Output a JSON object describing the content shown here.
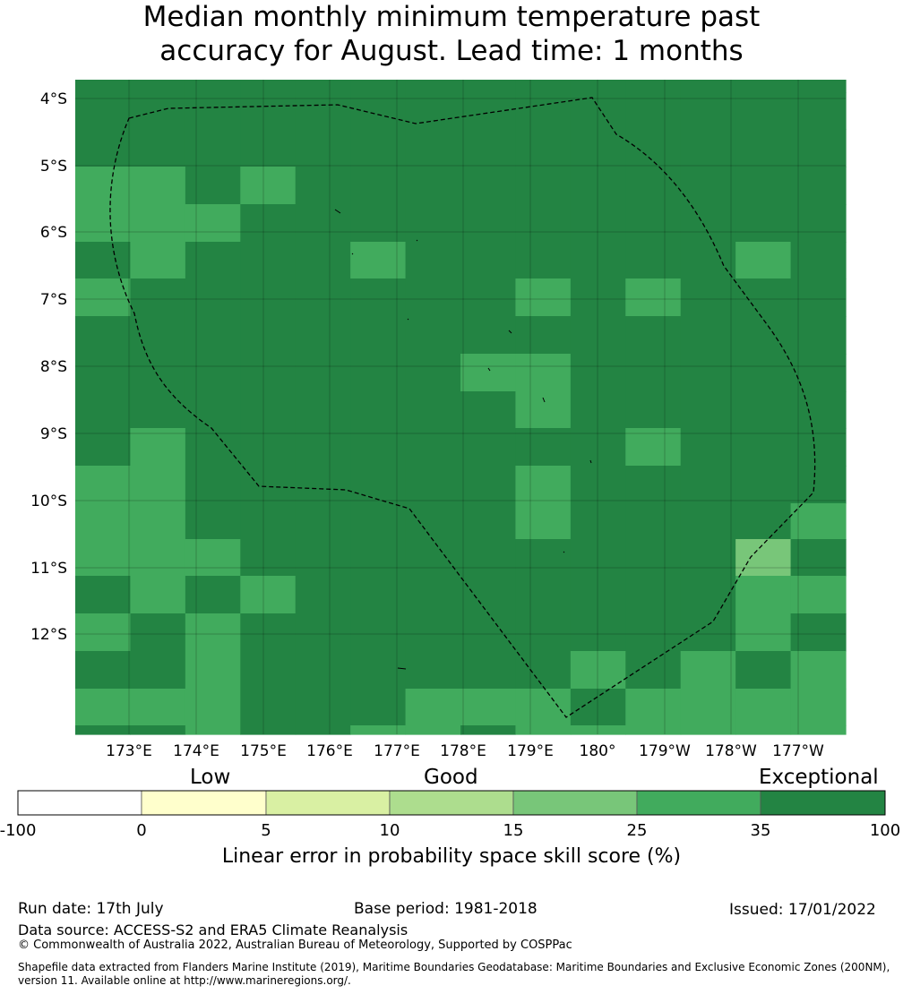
{
  "title": {
    "line1": "Median monthly minimum temperature past",
    "line2": "accuracy for August. Lead time: 1 months"
  },
  "map": {
    "lat_ticks": [
      "4°S",
      "5°S",
      "6°S",
      "7°S",
      "8°S",
      "9°S",
      "10°S",
      "11°S",
      "12°S"
    ],
    "lon_ticks": [
      "173°E",
      "174°E",
      "175°E",
      "176°E",
      "177°E",
      "178°E",
      "179°E",
      "180°",
      "179°W",
      "178°W",
      "177°W"
    ],
    "colors": [
      "#ffffff",
      "#ffffcc",
      "#d9f0a3",
      "#addd8e",
      "#78c679",
      "#41ab5d",
      "#238443"
    ],
    "grid_rows": [
      "66666666666666",
      "66666666666666",
      "66666666666666",
      "55656666666666",
      "55566666666666",
      "65666566666656",
      "56666666565666",
      "66666666666666",
      "66666665566666",
      "66666666566666",
      "65666666665666",
      "55666666566666",
      "55666666566665",
      "55566666666646",
      "65656666666655",
      "56566666666656",
      "66566666656565",
      "55566655565555",
      "66566556555555"
    ]
  },
  "colorbar": {
    "categories": [
      "Low",
      "Good",
      "Exceptional"
    ],
    "ticks": [
      "-100",
      "0",
      "5",
      "10",
      "15",
      "25",
      "35",
      "100"
    ],
    "label": "Linear error in probability space skill score (%)"
  },
  "footer": {
    "run_date": "Run date: 17th July",
    "base_period": "Base period: 1981-2018",
    "issued": "Issued: 17/01/2022",
    "data_source": "Data source: ACCESS-S2 and ERA5 Climate Reanalysis",
    "copyright": "© Commonwealth of Australia 2022, Australian Bureau of Meteorology, Supported by COSPPac",
    "shapefile_line1": "Shapefile data extracted from Flanders Marine Institute (2019), Maritime Boundaries Geodatabase: Maritime Boundaries and Exclusive Economic Zones (200NM),",
    "shapefile_line2": "version 11. Available online at http://www.marineregions.org/."
  }
}
